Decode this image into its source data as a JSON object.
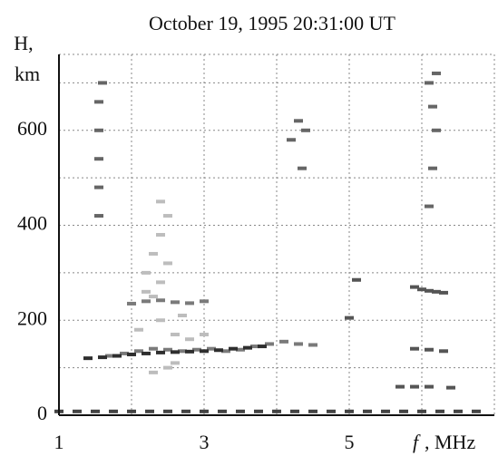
{
  "chart_data": {
    "type": "scatter",
    "title": "October 19, 1995  20:31:00 UT",
    "y_label_lines": [
      "H,",
      "km"
    ],
    "x_label_symbol": "f",
    "x_label_unit": ", MHz",
    "xlim": [
      1,
      7
    ],
    "xticks": [
      1,
      3,
      5
    ],
    "xminorticks": [
      2,
      4,
      6
    ],
    "ylim": [
      0,
      760
    ],
    "yticks": [
      0,
      200,
      400,
      600
    ],
    "yminorticks": [
      100,
      300,
      500,
      700
    ],
    "grid": true,
    "series": [
      {
        "color": "#bdbdbd",
        "x": [
          2.2,
          2.3,
          2.4,
          2.5,
          2.2,
          2.4,
          2.5,
          2.3,
          2.4,
          2.1,
          2.6,
          2.8,
          3.0,
          2.4,
          2.5,
          2.3,
          2.6,
          2.7
        ],
        "values": [
          300,
          340,
          380,
          420,
          260,
          280,
          320,
          250,
          200,
          180,
          170,
          160,
          170,
          450,
          100,
          90,
          110,
          210
        ]
      },
      {
        "color": "#7a7a7a",
        "x": [
          1.7,
          1.9,
          2.1,
          2.3,
          2.5,
          2.7,
          2.9,
          3.1,
          3.3,
          3.5,
          3.7,
          3.9,
          4.1,
          4.3,
          4.5,
          2.0,
          2.2,
          2.4,
          2.6,
          2.8,
          3.0
        ],
        "values": [
          125,
          130,
          135,
          140,
          138,
          135,
          138,
          140,
          135,
          138,
          145,
          150,
          155,
          150,
          148,
          235,
          240,
          242,
          238,
          236,
          240
        ]
      },
      {
        "color": "#2e2e2e",
        "x": [
          1.4,
          1.6,
          1.8,
          2.0,
          2.2,
          2.4,
          2.6,
          2.8,
          3.0,
          3.2,
          3.4,
          3.6,
          3.8
        ],
        "values": [
          120,
          122,
          125,
          128,
          130,
          132,
          133,
          134,
          135,
          137,
          140,
          142,
          145
        ]
      },
      {
        "color": "#555555",
        "x": [
          5.0,
          5.1,
          5.9,
          6.0,
          6.1,
          6.2,
          6.3,
          5.9,
          6.1,
          6.3,
          5.7,
          5.9,
          6.1,
          6.4
        ],
        "values": [
          205,
          285,
          270,
          265,
          262,
          260,
          258,
          140,
          138,
          135,
          60,
          60,
          60,
          58
        ]
      },
      {
        "color": "#666666",
        "x": [
          1.55,
          1.55,
          1.55,
          1.55,
          1.55,
          1.6,
          6.1,
          6.15,
          6.2,
          6.15,
          6.1,
          6.2,
          4.2,
          4.3,
          4.4,
          4.35
        ],
        "values": [
          420,
          480,
          540,
          600,
          660,
          700,
          440,
          520,
          600,
          650,
          700,
          720,
          580,
          620,
          600,
          520
        ]
      },
      {
        "color": "#444444",
        "x": [
          1.0,
          1.25,
          1.5,
          1.75,
          2.0,
          2.25,
          2.5,
          2.75,
          3.0,
          3.25,
          3.5,
          3.75,
          4.0,
          4.25,
          4.5,
          4.75,
          5.0,
          5.25,
          5.5,
          5.75,
          6.0,
          6.25,
          6.5,
          6.75
        ],
        "values": [
          8,
          8,
          8,
          8,
          8,
          8,
          8,
          8,
          8,
          8,
          8,
          8,
          8,
          8,
          8,
          8,
          8,
          8,
          8,
          8,
          8,
          8,
          8,
          8
        ]
      }
    ]
  }
}
